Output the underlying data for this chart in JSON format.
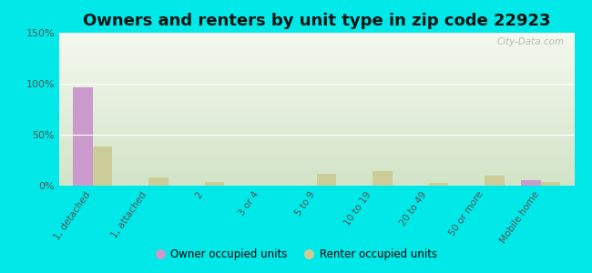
{
  "title": "Owners and renters by unit type in zip code 22923",
  "categories": [
    "1, detached",
    "1, attached",
    "2",
    "3 or 4",
    "5 to 9",
    "10 to 19",
    "20 to 49",
    "50 or more",
    "Mobile home"
  ],
  "owner_values": [
    96,
    0,
    0,
    0,
    0,
    0,
    0,
    0,
    5
  ],
  "renter_values": [
    38,
    8,
    4,
    0,
    12,
    14,
    3,
    10,
    4
  ],
  "owner_color": "#cc99cc",
  "renter_color": "#cccc99",
  "background_outer": "#00e8e8",
  "ylim": [
    0,
    150
  ],
  "yticks": [
    0,
    50,
    100,
    150
  ],
  "ytick_labels": [
    "0%",
    "50%",
    "100%",
    "150%"
  ],
  "bar_width": 0.35,
  "legend_owner": "Owner occupied units",
  "legend_renter": "Renter occupied units",
  "title_fontsize": 13,
  "watermark": "City-Data.com",
  "grad_top": "#f5f8ee",
  "grad_bottom": "#deebd8"
}
